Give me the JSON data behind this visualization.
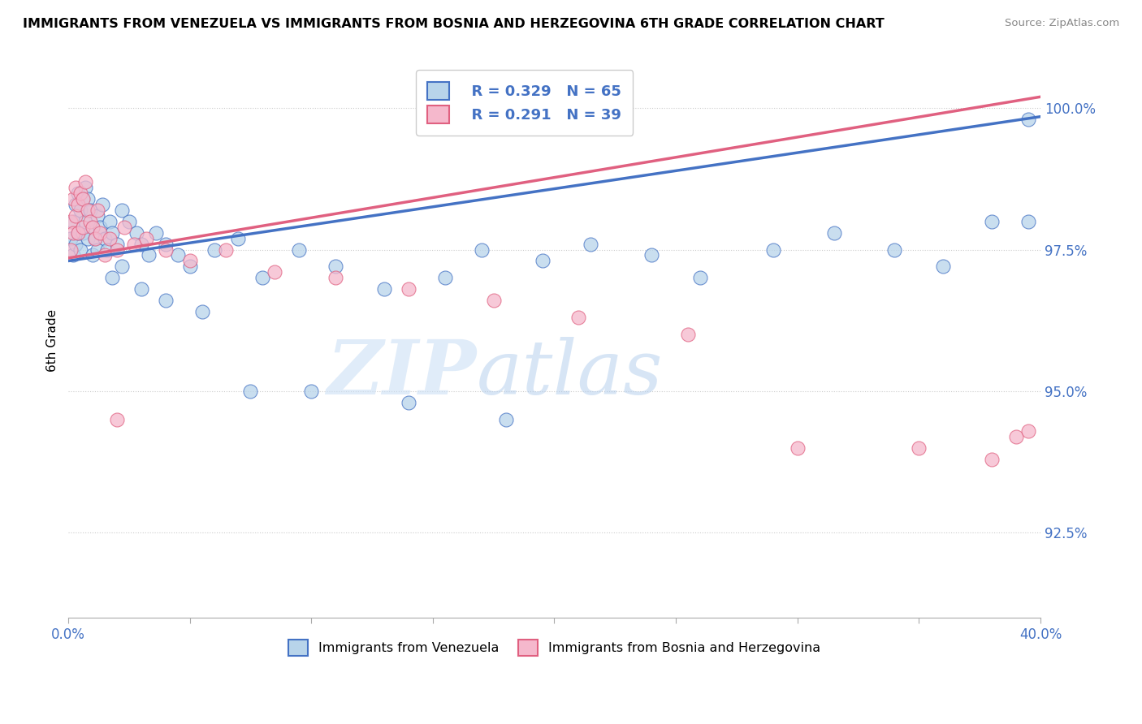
{
  "title": "IMMIGRANTS FROM VENEZUELA VS IMMIGRANTS FROM BOSNIA AND HERZEGOVINA 6TH GRADE CORRELATION CHART",
  "source": "Source: ZipAtlas.com",
  "ylabel": "6th Grade",
  "xlim": [
    0.0,
    0.4
  ],
  "ylim": [
    0.91,
    1.008
  ],
  "ytick_labels": [
    "92.5%",
    "95.0%",
    "97.5%",
    "100.0%"
  ],
  "ytick_values": [
    0.925,
    0.95,
    0.975,
    1.0
  ],
  "blue_color": "#b8d4ea",
  "pink_color": "#f5b8cc",
  "blue_line_color": "#4472c4",
  "pink_line_color": "#e06080",
  "legend_r_blue": "R = 0.329",
  "legend_n_blue": "N = 65",
  "legend_r_pink": "R = 0.291",
  "legend_n_pink": "N = 39",
  "label_blue": "Immigrants from Venezuela",
  "label_pink": "Immigrants from Bosnia and Herzegovina",
  "watermark_zip": "ZIP",
  "watermark_atlas": "atlas",
  "blue_trend_x0": 0.0,
  "blue_trend_y0": 0.973,
  "blue_trend_x1": 0.4,
  "blue_trend_y1": 0.9985,
  "pink_trend_x0": 0.0,
  "pink_trend_y0": 0.9735,
  "pink_trend_x1": 0.4,
  "pink_trend_y1": 1.002,
  "blue_scatter_x": [
    0.001,
    0.002,
    0.002,
    0.003,
    0.003,
    0.004,
    0.004,
    0.005,
    0.005,
    0.006,
    0.006,
    0.007,
    0.007,
    0.008,
    0.008,
    0.009,
    0.01,
    0.01,
    0.011,
    0.012,
    0.012,
    0.013,
    0.014,
    0.015,
    0.016,
    0.017,
    0.018,
    0.02,
    0.022,
    0.025,
    0.028,
    0.03,
    0.033,
    0.036,
    0.04,
    0.045,
    0.05,
    0.06,
    0.07,
    0.08,
    0.095,
    0.11,
    0.13,
    0.155,
    0.17,
    0.195,
    0.215,
    0.24,
    0.26,
    0.29,
    0.315,
    0.34,
    0.36,
    0.38,
    0.395,
    0.395,
    0.018,
    0.022,
    0.03,
    0.04,
    0.055,
    0.075,
    0.1,
    0.14,
    0.18
  ],
  "blue_scatter_y": [
    0.977,
    0.98,
    0.974,
    0.983,
    0.976,
    0.985,
    0.978,
    0.982,
    0.975,
    0.984,
    0.978,
    0.986,
    0.98,
    0.984,
    0.977,
    0.982,
    0.979,
    0.974,
    0.977,
    0.981,
    0.975,
    0.979,
    0.983,
    0.977,
    0.975,
    0.98,
    0.978,
    0.976,
    0.982,
    0.98,
    0.978,
    0.976,
    0.974,
    0.978,
    0.976,
    0.974,
    0.972,
    0.975,
    0.977,
    0.97,
    0.975,
    0.972,
    0.968,
    0.97,
    0.975,
    0.973,
    0.976,
    0.974,
    0.97,
    0.975,
    0.978,
    0.975,
    0.972,
    0.98,
    0.98,
    0.998,
    0.97,
    0.972,
    0.968,
    0.966,
    0.964,
    0.95,
    0.95,
    0.948,
    0.945
  ],
  "pink_scatter_x": [
    0.001,
    0.001,
    0.002,
    0.002,
    0.003,
    0.003,
    0.004,
    0.004,
    0.005,
    0.006,
    0.006,
    0.007,
    0.008,
    0.009,
    0.01,
    0.011,
    0.012,
    0.013,
    0.015,
    0.017,
    0.02,
    0.023,
    0.027,
    0.032,
    0.04,
    0.05,
    0.065,
    0.085,
    0.11,
    0.14,
    0.175,
    0.21,
    0.255,
    0.3,
    0.35,
    0.38,
    0.39,
    0.395,
    0.02
  ],
  "pink_scatter_y": [
    0.98,
    0.975,
    0.984,
    0.978,
    0.986,
    0.981,
    0.983,
    0.978,
    0.985,
    0.984,
    0.979,
    0.987,
    0.982,
    0.98,
    0.979,
    0.977,
    0.982,
    0.978,
    0.974,
    0.977,
    0.975,
    0.979,
    0.976,
    0.977,
    0.975,
    0.973,
    0.975,
    0.971,
    0.97,
    0.968,
    0.966,
    0.963,
    0.96,
    0.94,
    0.94,
    0.938,
    0.942,
    0.943,
    0.945
  ]
}
